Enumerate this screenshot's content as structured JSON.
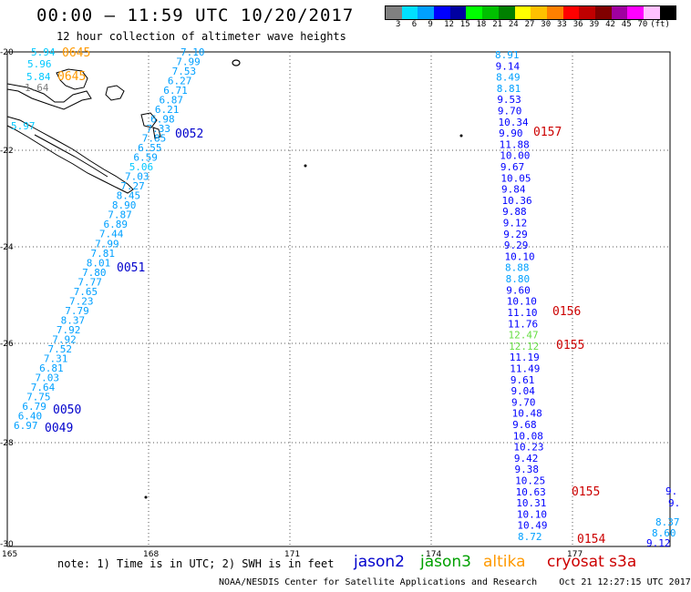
{
  "header": {
    "title": "00:00 – 11:59 UTC 10/20/2017",
    "subtitle": "12 hour collection of altimeter wave heights"
  },
  "legend": {
    "colors": [
      "#808080",
      "#00e0ff",
      "#00a0ff",
      "#0000ff",
      "#0000a0",
      "#00ff00",
      "#00c000",
      "#008000",
      "#ffff00",
      "#ffc000",
      "#ff8000",
      "#ff0000",
      "#c00000",
      "#800000",
      "#a000a0",
      "#ff00ff",
      "#ffc0ff",
      "#000000"
    ],
    "labels": [
      "3",
      "6",
      "9",
      "12",
      "15",
      "18",
      "21",
      "24",
      "27",
      "30",
      "33",
      "36",
      "39",
      "42",
      "45",
      "70",
      "(ft)"
    ]
  },
  "axes": {
    "lat_labels": [
      "-20",
      "-22",
      "-24",
      "-26",
      "-28",
      "-30"
    ],
    "lon_labels": [
      "165",
      "168",
      "171",
      "174",
      "177"
    ]
  },
  "tracks": {
    "track_a": [
      "5.94",
      "5.96",
      "5.84",
      "1.64",
      "5.97"
    ],
    "track_b": [
      "7.10",
      "7.99",
      "7.53",
      "6.27",
      "6.71",
      "6.87",
      "6.21",
      "6.98",
      "7.33",
      "7.85",
      "6.55",
      "6.59",
      "5.06",
      "7.03",
      "7.27",
      "8.45",
      "8.90",
      "7.87",
      "6.89",
      "7.44",
      "7.99",
      "7.81",
      "8.01",
      "7.80",
      "7.77",
      "7.65",
      "7.23",
      "7.79",
      "8.37",
      "7.92",
      "7.92",
      "7.52",
      "7.31",
      "6.81",
      "7.03",
      "7.64",
      "7.75",
      "6.79",
      "6.40",
      "6.97"
    ],
    "track_c": [
      "8.91",
      "9.14",
      "8.49",
      "8.81",
      "9.53",
      "9.70",
      "10.34",
      "9.90",
      "11.88",
      "10.00",
      "9.67",
      "10.05",
      "9.84",
      "10.36",
      "9.88",
      "9.12",
      "9.29",
      "9.29",
      "10.10",
      "8.88",
      "8.80",
      "9.60",
      "10.10",
      "11.10",
      "11.76",
      "12.47",
      "12.12",
      "11.19",
      "11.49",
      "9.61",
      "9.04",
      "9.70",
      "10.48",
      "9.68",
      "10.08",
      "10.23",
      "9.42",
      "9.38",
      "10.25",
      "10.63",
      "10.31",
      "10.10",
      "10.49",
      "8.72"
    ],
    "track_d": [
      "9.",
      "9.",
      "8.37",
      "8.60",
      "9.12"
    ]
  },
  "times": {
    "t0645a": "0645",
    "t0645b": "0645",
    "t0052": "0052",
    "t0051": "0051",
    "t0050": "0050",
    "t0049": "0049",
    "t0157": "0157",
    "t0156": "0156",
    "t0155a": "0155",
    "t0155b": "0155",
    "t0154": "0154"
  },
  "footer": {
    "note": "note: 1) Time is in UTC; 2) SWH is in feet",
    "satellites": {
      "jason2": "jason2",
      "jason3": "jason3",
      "altika": "altika",
      "cryosat": "cryosat s3a"
    },
    "credit": "NOAA/NESDIS Center for Satellite Applications and Research    Oct 21 12:27:15 UTC 2017"
  }
}
